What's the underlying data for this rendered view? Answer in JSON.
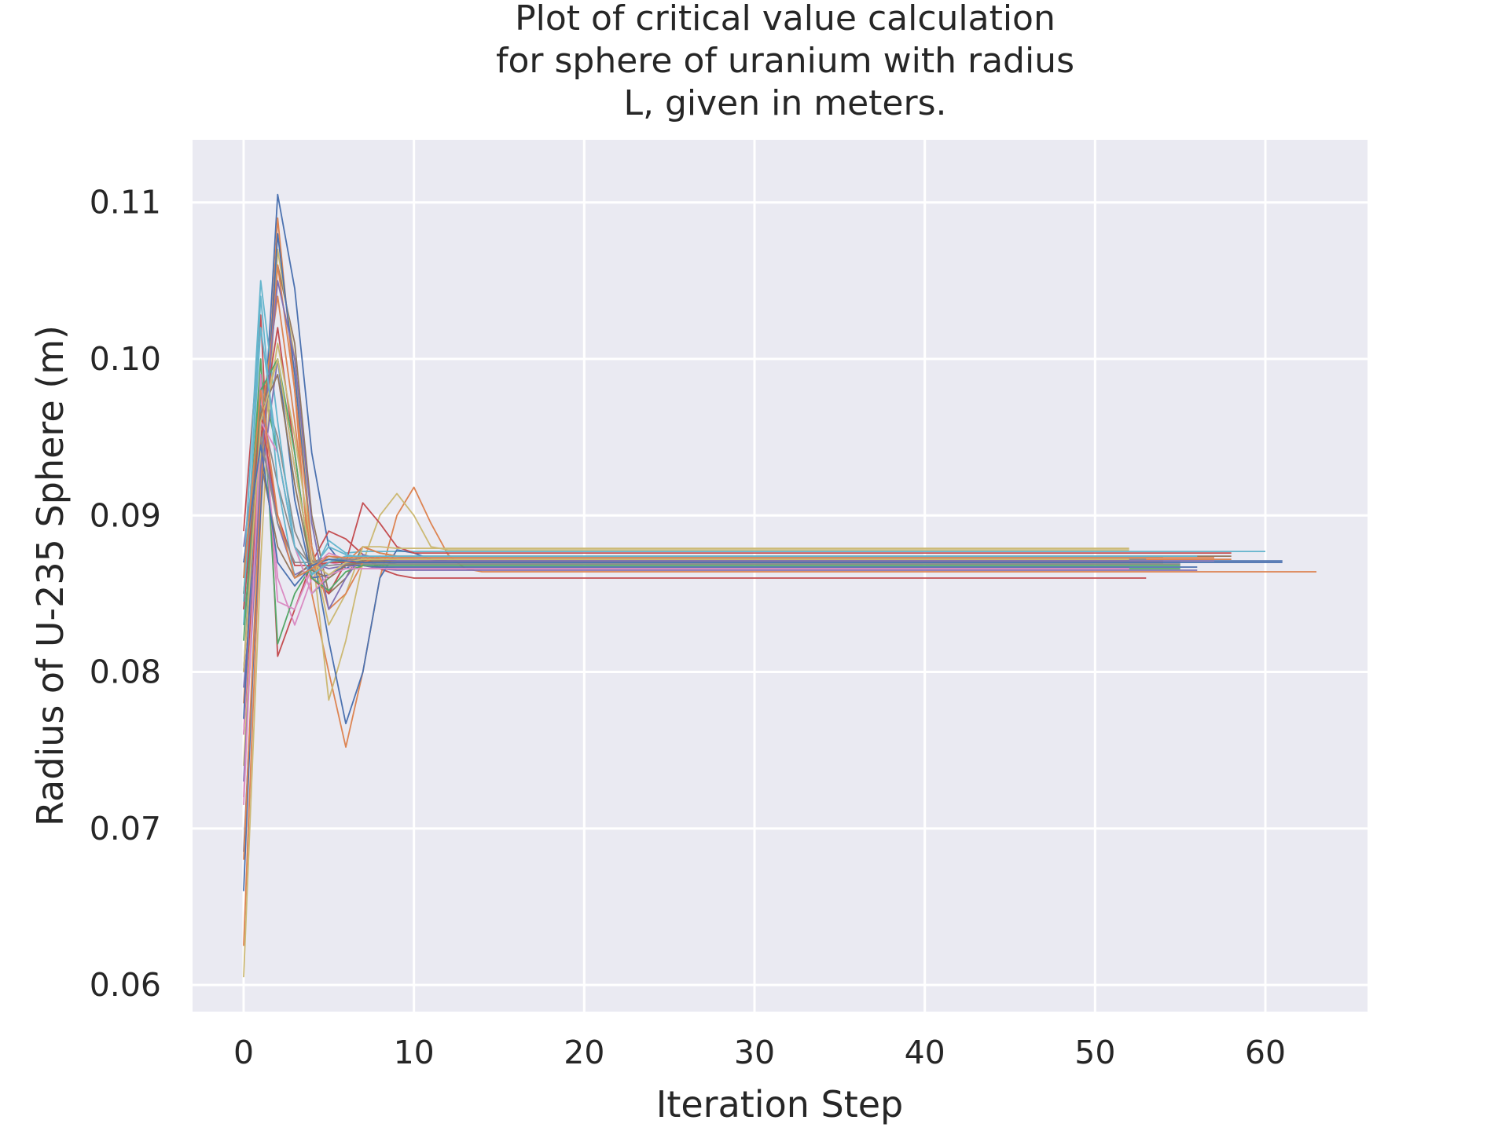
{
  "chart_data": {
    "type": "line",
    "title": [
      "Plot of critical value calculation",
      "for sphere of uranium with radius",
      "L, given in meters."
    ],
    "xlabel": "Iteration Step",
    "ylabel": "Radius of U-235 Sphere (m)",
    "xlim": [
      -3,
      66
    ],
    "ylim": [
      0.0583,
      0.114
    ],
    "xticks": [
      0,
      10,
      20,
      30,
      40,
      50,
      60
    ],
    "yticks": [
      0.06,
      0.07,
      0.08,
      0.09,
      0.1,
      0.11
    ],
    "ytick_labels": [
      "0.06",
      "0.07",
      "0.08",
      "0.09",
      "0.10",
      "0.11"
    ],
    "grid": true,
    "legend": "none",
    "series": [
      {
        "color": "#4c72b0",
        "values": [
          0.066,
          0.092,
          0.1105,
          0.1045,
          0.094,
          0.088,
          0.0866,
          0.0872,
          0.0868,
          0.087,
          0.087,
          0.087,
          0.087,
          0.087,
          0.087,
          0.087
        ],
        "end": 61
      },
      {
        "color": "#dd8452",
        "values": [
          0.0625,
          0.09,
          0.109,
          0.098,
          0.085,
          0.08,
          0.0752,
          0.08,
          0.086,
          0.09,
          0.0918,
          0.0895,
          0.0875,
          0.0866,
          0.0864,
          0.0864
        ],
        "end": 63
      },
      {
        "color": "#55a868",
        "values": [
          0.085,
          0.099,
          0.094,
          0.088,
          0.085,
          0.086,
          0.0868,
          0.0868,
          0.0867,
          0.0866,
          0.0866,
          0.0866,
          0.0866,
          0.0866,
          0.0866,
          0.0866
        ],
        "end": 55
      },
      {
        "color": "#c44e52",
        "values": [
          0.089,
          0.1028,
          0.081,
          0.084,
          0.087,
          0.089,
          0.0885,
          0.0875,
          0.0866,
          0.0862,
          0.086,
          0.086,
          0.086,
          0.086,
          0.086,
          0.086
        ],
        "end": 53
      },
      {
        "color": "#8172b3",
        "values": [
          0.088,
          0.096,
          0.0895,
          0.0862,
          0.0868,
          0.0872,
          0.087,
          0.0868,
          0.0866,
          0.0865,
          0.0865,
          0.0865,
          0.0865,
          0.0865,
          0.0865,
          0.0865
        ],
        "end": 56
      },
      {
        "color": "#937860",
        "values": [
          0.083,
          0.094,
          0.106,
          0.101,
          0.09,
          0.085,
          0.086,
          0.088,
          0.0876,
          0.0874,
          0.0874,
          0.0874,
          0.0874,
          0.0874,
          0.0874,
          0.0874
        ],
        "end": 58
      },
      {
        "color": "#da8bc3",
        "values": [
          0.072,
          0.0975,
          0.086,
          0.083,
          0.086,
          0.087,
          0.0868,
          0.0866,
          0.0866,
          0.0866,
          0.0866,
          0.0866,
          0.0866,
          0.0866,
          0.0866,
          0.0866
        ],
        "end": 52
      },
      {
        "color": "#8c8c8c",
        "values": [
          0.08,
          0.0985,
          0.095,
          0.089,
          0.0865,
          0.087,
          0.0872,
          0.0871,
          0.0871,
          0.0871,
          0.0871,
          0.0871,
          0.0871,
          0.0871,
          0.0871,
          0.0871
        ],
        "end": 54
      },
      {
        "color": "#ccb974",
        "values": [
          0.0605,
          0.087,
          0.107,
          0.1,
          0.088,
          0.0782,
          0.082,
          0.087,
          0.09,
          0.0914,
          0.09,
          0.088,
          0.0878,
          0.0878,
          0.0878,
          0.0878
        ],
        "end": 52
      },
      {
        "color": "#64b5cd",
        "values": [
          0.086,
          0.105,
          0.096,
          0.088,
          0.0862,
          0.0884,
          0.0876,
          0.0877,
          0.0877,
          0.0877,
          0.0877,
          0.0877,
          0.0877,
          0.0877,
          0.0877,
          0.0877
        ],
        "end": 60
      },
      {
        "color": "#4c72b0",
        "values": [
          0.0685,
          0.0905,
          0.108,
          0.099,
          0.088,
          0.082,
          0.0767,
          0.08,
          0.086,
          0.0878,
          0.0876,
          0.0872,
          0.0871,
          0.0871,
          0.0871,
          0.0871
        ],
        "end": 61
      },
      {
        "color": "#dd8452",
        "values": [
          0.078,
          0.096,
          0.104,
          0.096,
          0.087,
          0.085,
          0.087,
          0.088,
          0.0876,
          0.0874,
          0.0873,
          0.0873,
          0.0873,
          0.0873,
          0.0873,
          0.0873
        ],
        "end": 57
      },
      {
        "color": "#55a868",
        "values": [
          0.084,
          0.1,
          0.0818,
          0.085,
          0.0868,
          0.0872,
          0.087,
          0.0869,
          0.0869,
          0.0869,
          0.0869,
          0.0869,
          0.0869,
          0.0869,
          0.0869,
          0.0869
        ],
        "end": 54
      },
      {
        "color": "#c44e52",
        "values": [
          0.076,
          0.095,
          0.102,
          0.094,
          0.086,
          0.085,
          0.087,
          0.0908,
          0.0895,
          0.088,
          0.0876,
          0.0876,
          0.0876,
          0.0876,
          0.0876,
          0.0876
        ],
        "end": 58
      },
      {
        "color": "#8172b3",
        "values": [
          0.079,
          0.092,
          0.1,
          0.093,
          0.087,
          0.0866,
          0.0868,
          0.0869,
          0.0869,
          0.0869,
          0.0869,
          0.0869,
          0.0869,
          0.0869,
          0.0869,
          0.0869
        ],
        "end": 55
      },
      {
        "color": "#937860",
        "values": [
          0.087,
          0.0935,
          0.088,
          0.086,
          0.087,
          0.0874,
          0.0872,
          0.0871,
          0.0871,
          0.0871,
          0.0871,
          0.0871,
          0.0871,
          0.0871,
          0.0871,
          0.0871
        ],
        "end": 52
      },
      {
        "color": "#da8bc3",
        "values": [
          0.076,
          0.099,
          0.0845,
          0.084,
          0.0866,
          0.0876,
          0.0872,
          0.0868,
          0.0867,
          0.0867,
          0.0867,
          0.0867,
          0.0867,
          0.0867,
          0.0867,
          0.0867
        ],
        "end": 52
      },
      {
        "color": "#8c8c8c",
        "values": [
          0.085,
          0.097,
          0.092,
          0.088,
          0.0868,
          0.0868,
          0.0869,
          0.0869,
          0.0869,
          0.0869,
          0.0869,
          0.0869,
          0.0869,
          0.0869,
          0.0869,
          0.0869
        ],
        "end": 55
      },
      {
        "color": "#ccb974",
        "values": [
          0.074,
          0.094,
          0.101,
          0.095,
          0.088,
          0.083,
          0.085,
          0.088,
          0.088,
          0.0879,
          0.0879,
          0.0879,
          0.0879,
          0.0879,
          0.0879,
          0.0879
        ],
        "end": 52
      },
      {
        "color": "#64b5cd",
        "values": [
          0.083,
          0.104,
          0.092,
          0.086,
          0.0866,
          0.088,
          0.0875,
          0.0873,
          0.0873,
          0.0873,
          0.0873,
          0.0873,
          0.0873,
          0.0873,
          0.0873,
          0.0873
        ],
        "end": 54
      },
      {
        "color": "#4c72b0",
        "values": [
          0.077,
          0.098,
          0.1,
          0.091,
          0.086,
          0.0862,
          0.0868,
          0.0868,
          0.0867,
          0.0867,
          0.0867,
          0.0867,
          0.0867,
          0.0867,
          0.0867,
          0.0867
        ],
        "end": 56
      },
      {
        "color": "#dd8452",
        "values": [
          0.068,
          0.092,
          0.106,
          0.098,
          0.088,
          0.084,
          0.085,
          0.087,
          0.0874,
          0.0872,
          0.0872,
          0.0872,
          0.0872,
          0.0872,
          0.0872,
          0.0872
        ],
        "end": 58
      },
      {
        "color": "#55a868",
        "values": [
          0.082,
          0.098,
          0.1,
          0.094,
          0.086,
          0.0852,
          0.0864,
          0.0868,
          0.0868,
          0.0868,
          0.0868,
          0.0868,
          0.0868,
          0.0868,
          0.0868,
          0.0868
        ],
        "end": 55
      },
      {
        "color": "#c44e52",
        "values": [
          0.084,
          0.0965,
          0.09,
          0.0868,
          0.0868,
          0.087,
          0.087,
          0.087,
          0.087,
          0.087,
          0.087,
          0.087,
          0.087,
          0.087,
          0.087,
          0.087
        ],
        "end": 54
      },
      {
        "color": "#8172b3",
        "values": [
          0.073,
          0.093,
          0.105,
          0.1,
          0.0895,
          0.084,
          0.086,
          0.0875,
          0.0872,
          0.0871,
          0.0871,
          0.0871,
          0.0871,
          0.0871,
          0.0871,
          0.0871
        ],
        "end": 57
      },
      {
        "color": "#937860",
        "values": [
          0.08,
          0.0965,
          0.099,
          0.092,
          0.0865,
          0.086,
          0.0868,
          0.087,
          0.087,
          0.087,
          0.087,
          0.087,
          0.087,
          0.087,
          0.087,
          0.087
        ],
        "end": 54
      },
      {
        "color": "#da8bc3",
        "values": [
          0.0715,
          0.096,
          0.094,
          0.088,
          0.085,
          0.0862,
          0.0866,
          0.0866,
          0.0866,
          0.0866,
          0.0866,
          0.0866,
          0.0866,
          0.0866,
          0.0866,
          0.0866
        ],
        "end": 52
      },
      {
        "color": "#8c8c8c",
        "values": [
          0.086,
          0.095,
          0.0895,
          0.087,
          0.087,
          0.0872,
          0.0872,
          0.0872,
          0.0872,
          0.0872,
          0.0872,
          0.0872,
          0.0872,
          0.0872,
          0.0872,
          0.0872
        ],
        "end": 53
      },
      {
        "color": "#ccb974",
        "values": [
          0.08,
          0.096,
          0.1,
          0.093,
          0.087,
          0.0862,
          0.087,
          0.0872,
          0.0872,
          0.0872,
          0.0872,
          0.0872,
          0.0872,
          0.0872,
          0.0872,
          0.0872
        ],
        "end": 52
      },
      {
        "color": "#64b5cd",
        "values": [
          0.0845,
          0.102,
          0.094,
          0.088,
          0.0862,
          0.087,
          0.0874,
          0.0874,
          0.0874,
          0.0874,
          0.0874,
          0.0874,
          0.0874,
          0.0874,
          0.0874,
          0.0874
        ],
        "end": 56
      },
      {
        "color": "#4c72b0",
        "values": [
          0.087,
          0.0945,
          0.087,
          0.0855,
          0.0868,
          0.0872,
          0.0871,
          0.087,
          0.087,
          0.087,
          0.087,
          0.087,
          0.087,
          0.087,
          0.087,
          0.087
        ],
        "end": 55
      },
      {
        "color": "#dd8452",
        "values": [
          0.086,
          0.098,
          0.09,
          0.086,
          0.0866,
          0.0874,
          0.0873,
          0.0873,
          0.0873,
          0.0873,
          0.0873,
          0.0873,
          0.0873,
          0.0873,
          0.0873,
          0.0873
        ],
        "end": 54
      }
    ]
  }
}
